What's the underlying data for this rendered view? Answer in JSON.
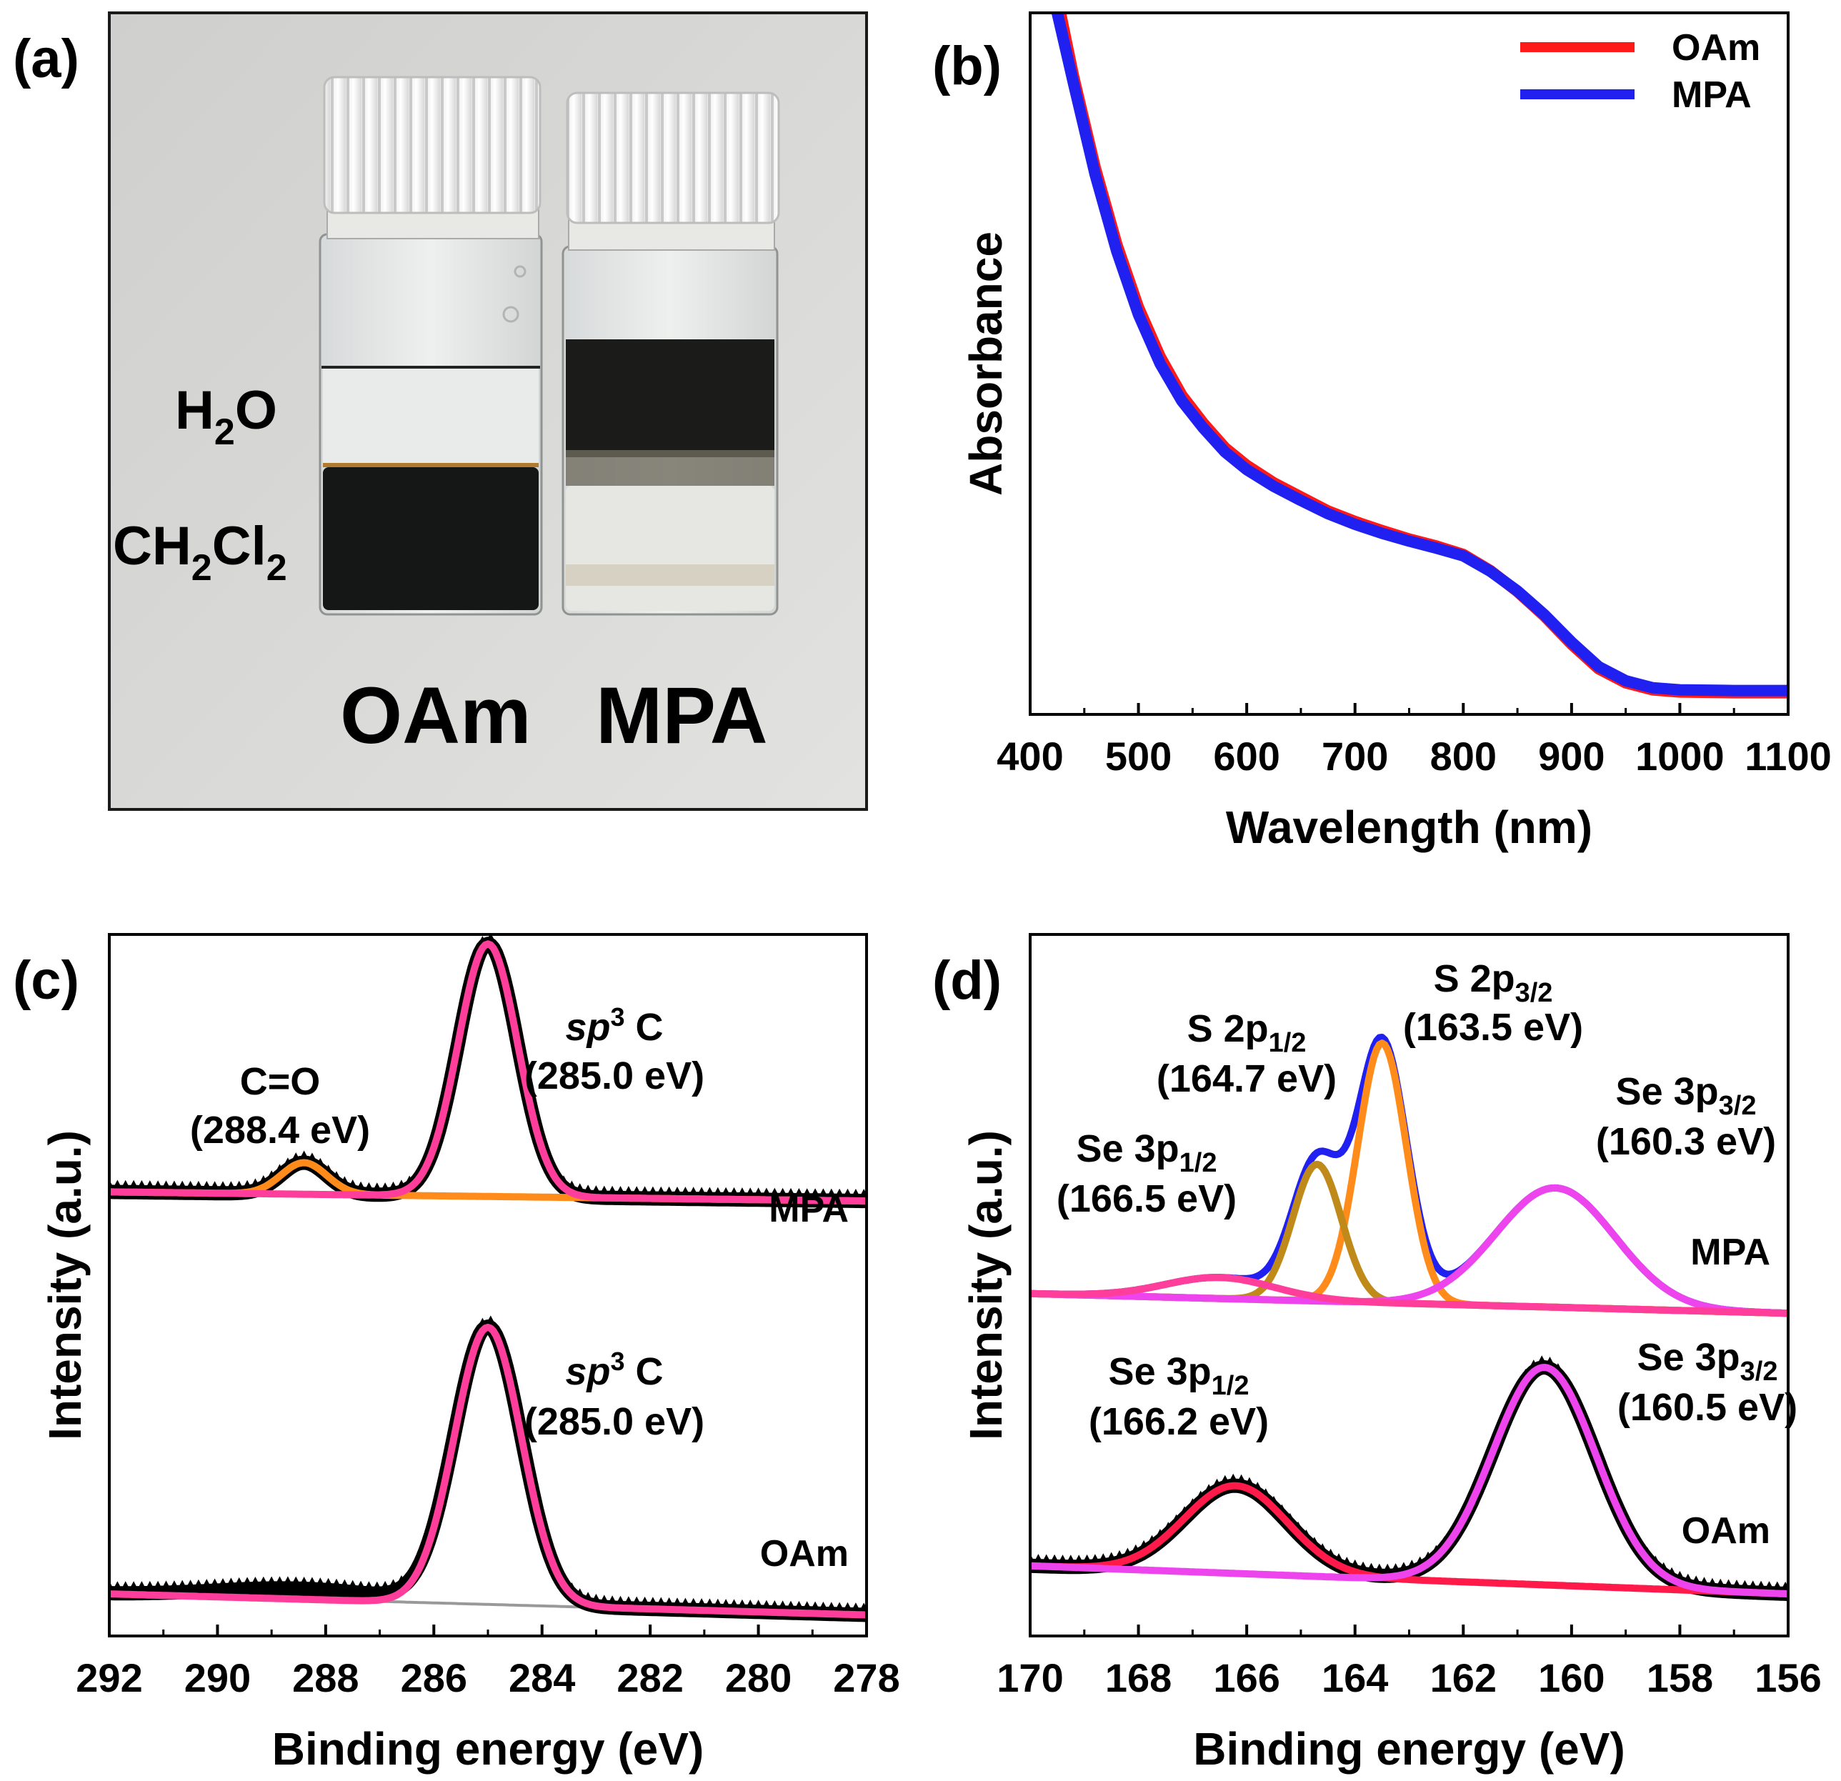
{
  "panels": {
    "a": {
      "label": "(a)",
      "photo_labels": {
        "water": "H",
        "water_sub": "2",
        "water_tail": "O",
        "dcm_1": "CH",
        "dcm_sub1": "2",
        "dcm_2": "Cl",
        "dcm_sub2": "2",
        "left_vial": "OAm",
        "right_vial": "MPA"
      }
    },
    "b": {
      "label": "(b)"
    },
    "c": {
      "label": "(c)"
    },
    "d": {
      "label": "(d)"
    }
  },
  "colors": {
    "oam_red": "#ff1a1a",
    "mpa_blue": "#2020f0",
    "fit_pink": "#ff3d9a",
    "fit_orange": "#ff8c1a",
    "fit_olive": "#c08a1a",
    "fit_magenta": "#ee44ee",
    "baseline_gray": "#999999",
    "data_black": "#000000"
  },
  "chart_data": [
    {
      "id": "b",
      "type": "line",
      "title": "",
      "xlabel": "Wavelength (nm)",
      "ylabel": "Absorbance",
      "xlim": [
        400,
        1100
      ],
      "ylim": [
        0,
        1
      ],
      "xticks": [
        400,
        500,
        600,
        700,
        800,
        900,
        1000,
        1100
      ],
      "legend": {
        "position": "top-right",
        "entries": [
          "OAm",
          "MPA"
        ]
      },
      "series": [
        {
          "name": "OAm",
          "color": "#ff1a1a",
          "x": [
            428,
            440,
            460,
            480,
            500,
            520,
            540,
            560,
            580,
            600,
            625,
            650,
            675,
            700,
            725,
            750,
            775,
            800,
            825,
            850,
            875,
            900,
            925,
            950,
            975,
            1000,
            1050,
            1100
          ],
          "y": [
            1.0,
            0.91,
            0.78,
            0.67,
            0.58,
            0.51,
            0.455,
            0.415,
            0.38,
            0.355,
            0.33,
            0.31,
            0.29,
            0.275,
            0.262,
            0.25,
            0.24,
            0.228,
            0.205,
            0.175,
            0.14,
            0.1,
            0.065,
            0.045,
            0.035,
            0.032,
            0.031,
            0.031
          ]
        },
        {
          "name": "MPA",
          "color": "#2020f0",
          "x": [
            425,
            440,
            460,
            480,
            500,
            520,
            540,
            560,
            580,
            600,
            625,
            650,
            675,
            700,
            725,
            750,
            775,
            800,
            825,
            850,
            875,
            900,
            925,
            950,
            975,
            1000,
            1050,
            1100
          ],
          "y": [
            1.0,
            0.9,
            0.77,
            0.66,
            0.57,
            0.5,
            0.447,
            0.408,
            0.374,
            0.349,
            0.325,
            0.305,
            0.286,
            0.271,
            0.258,
            0.247,
            0.237,
            0.226,
            0.204,
            0.176,
            0.142,
            0.103,
            0.068,
            0.048,
            0.038,
            0.035,
            0.034,
            0.034
          ]
        }
      ]
    },
    {
      "id": "c",
      "type": "line",
      "title": "",
      "xlabel": "Binding energy (eV)",
      "ylabel": "Intensity (a.u.)",
      "xlim": [
        292,
        278
      ],
      "ylim": [
        0,
        1
      ],
      "xticks": [
        292,
        290,
        288,
        286,
        284,
        282,
        280,
        278
      ],
      "stack_labels": [
        "MPA",
        "OAm"
      ],
      "annotations": {
        "mpa_co": [
          "C=O",
          "(288.4 eV)"
        ],
        "mpa_sp3": [
          "sp",
          "3",
          " C",
          "(285.0 eV)"
        ],
        "oam_sp3": [
          "sp",
          "3",
          " C",
          "(285.0 eV)"
        ]
      },
      "series": [
        {
          "name": "MPA data",
          "color": "#000000",
          "offset": 0.62,
          "peaks": [
            {
              "center": 285.0,
              "height": 0.36,
              "width": 0.55
            },
            {
              "center": 288.4,
              "height": 0.045,
              "width": 0.42
            }
          ],
          "baseline": [
            0.013,
            0.0
          ]
        },
        {
          "name": "MPA C=O fit",
          "color": "#ff8c1a",
          "offset": 0.62,
          "peaks": [
            {
              "center": 288.4,
              "height": 0.045,
              "width": 0.42
            }
          ],
          "baseline": [
            0.013,
            0.0
          ]
        },
        {
          "name": "MPA sp3 C fit",
          "color": "#ff3d9a",
          "offset": 0.62,
          "peaks": [
            {
              "center": 285.0,
              "height": 0.36,
              "width": 0.55
            }
          ],
          "baseline": [
            0.013,
            0.0
          ]
        },
        {
          "name": "OAm data",
          "color": "#000000",
          "offset": 0.03,
          "peaks": [
            {
              "center": 285.0,
              "height": 0.395,
              "width": 0.62
            },
            {
              "center": 288.5,
              "height": 0.015,
              "width": 1.5
            }
          ],
          "baseline": [
            0.03,
            0.0
          ]
        },
        {
          "name": "OAm sp3 C fit",
          "color": "#ff3d9a",
          "offset": 0.03,
          "peaks": [
            {
              "center": 285.0,
              "height": 0.395,
              "width": 0.62
            }
          ],
          "baseline": [
            0.03,
            0.0
          ]
        }
      ]
    },
    {
      "id": "d",
      "type": "line",
      "title": "",
      "xlabel": "Binding energy (eV)",
      "ylabel": "Intensity (a.u.)",
      "xlim": [
        170,
        156
      ],
      "ylim": [
        0,
        1
      ],
      "xticks": [
        170,
        168,
        166,
        164,
        162,
        160,
        158,
        156
      ],
      "stack_labels": [
        "MPA",
        "OAm"
      ],
      "annotations": {
        "s2p12": [
          "S 2p",
          "1/2",
          "(164.7 eV)"
        ],
        "s2p32": [
          "S 2p",
          "3/2",
          "(163.5 eV)"
        ],
        "se3p12_mpa": [
          "Se 3p",
          "1/2",
          "(166.5 eV)"
        ],
        "se3p32_mpa": [
          "Se 3p",
          "3/2",
          "(160.3 eV)"
        ],
        "se3p12_oam": [
          "Se 3p",
          "1/2",
          "(166.2 eV)"
        ],
        "se3p32_oam": [
          "Se 3p",
          "3/2",
          "(160.5 eV)"
        ]
      },
      "series": [
        {
          "name": "MPA envelope",
          "color": "#2020f0",
          "offset": 0.46,
          "peaks": [
            {
              "center": 163.5,
              "height": 0.37,
              "width": 0.45
            },
            {
              "center": 164.7,
              "height": 0.195,
              "width": 0.45
            },
            {
              "center": 160.3,
              "height": 0.17,
              "width": 1.1
            },
            {
              "center": 166.5,
              "height": 0.03,
              "width": 1.0
            }
          ],
          "baseline": [
            0.028,
            0.0
          ]
        },
        {
          "name": "S 2p3/2 fit",
          "color": "#ff8c1a",
          "offset": 0.46,
          "peaks": [
            {
              "center": 163.5,
              "height": 0.37,
              "width": 0.45
            }
          ],
          "baseline": [
            0.028,
            0.0
          ]
        },
        {
          "name": "S 2p1/2 fit",
          "color": "#c08a1a",
          "offset": 0.46,
          "peaks": [
            {
              "center": 164.7,
              "height": 0.195,
              "width": 0.45
            }
          ],
          "baseline": [
            0.028,
            0.0
          ]
        },
        {
          "name": "Se 3p3/2 fit (MPA)",
          "color": "#ee44ee",
          "offset": 0.46,
          "peaks": [
            {
              "center": 160.3,
              "height": 0.17,
              "width": 1.1
            }
          ],
          "baseline": [
            0.028,
            0.0
          ]
        },
        {
          "name": "Se 3p1/2 fit (MPA)",
          "color": "#ff3d9a",
          "offset": 0.46,
          "peaks": [
            {
              "center": 166.5,
              "height": 0.03,
              "width": 1.0
            }
          ],
          "baseline": [
            0.028,
            0.0
          ]
        },
        {
          "name": "OAm data",
          "color": "#000000",
          "offset": 0.06,
          "peaks": [
            {
              "center": 166.2,
              "height": 0.125,
              "width": 0.95
            },
            {
              "center": 160.5,
              "height": 0.31,
              "width": 0.95
            }
          ],
          "baseline": [
            0.04,
            0.0
          ]
        },
        {
          "name": "Se 3p1/2 fit (OAm)",
          "color": "#ff1a4a",
          "offset": 0.06,
          "peaks": [
            {
              "center": 166.2,
              "height": 0.125,
              "width": 0.95
            }
          ],
          "baseline": [
            0.04,
            0.0
          ]
        },
        {
          "name": "Se 3p3/2 fit (OAm)",
          "color": "#ee44ee",
          "offset": 0.06,
          "peaks": [
            {
              "center": 160.5,
              "height": 0.31,
              "width": 0.95
            }
          ],
          "baseline": [
            0.04,
            0.0
          ]
        }
      ]
    }
  ]
}
